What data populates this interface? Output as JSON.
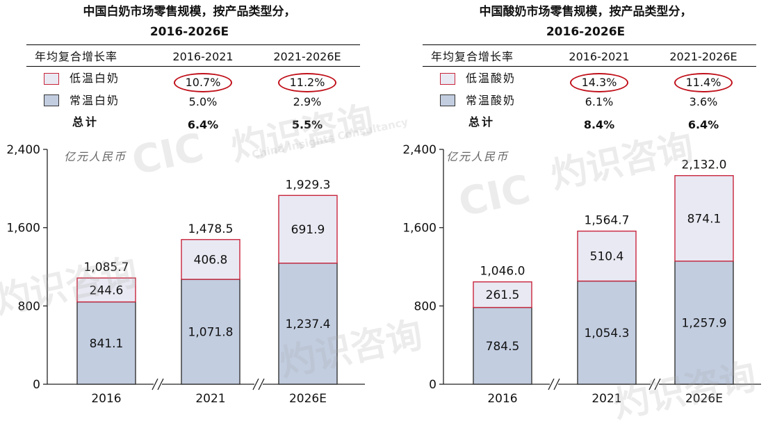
{
  "watermark": {
    "cn": "灼识咨询",
    "logo": "CIC",
    "en": "China Insights Consultancy"
  },
  "panels": [
    {
      "title_line1": "中国白奶市场零售规模，按产品类型分，",
      "title_line2": "2016-2026E",
      "table": {
        "header": [
          "年均复合增长率",
          "2016-2021",
          "2021-2026E"
        ],
        "rows": [
          {
            "label": "低温白奶",
            "v1": "10.7%",
            "v2": "11.2%",
            "swatch": "low",
            "circled": true,
            "bold": false
          },
          {
            "label": "常温白奶",
            "v1": "5.0%",
            "v2": "2.9%",
            "swatch": "ambient",
            "circled": false,
            "bold": false
          },
          {
            "label": "总计",
            "v1": "6.4%",
            "v2": "5.5%",
            "swatch": "",
            "circled": false,
            "bold": true
          }
        ]
      },
      "unit": "亿元人民币",
      "chart_data": {
        "type": "bar",
        "stacked": true,
        "categories": [
          "2016",
          "2021",
          "2026E"
        ],
        "series": [
          {
            "name": "常温白奶",
            "values": [
              841.1,
              1071.8,
              1237.4
            ],
            "labels": [
              "841.1",
              "1,071.8",
              "1,237.4"
            ],
            "color": "#c2cde0",
            "border": "#333333"
          },
          {
            "name": "低温白奶",
            "values": [
              244.6,
              406.8,
              691.9
            ],
            "labels": [
              "244.6",
              "406.8",
              "691.9"
            ],
            "color": "#e9e9f3",
            "border": "#c8243b"
          }
        ],
        "totals": [
          1085.7,
          1478.5,
          1929.3
        ],
        "total_labels": [
          "1,085.7",
          "1,478.5",
          "1,929.3"
        ],
        "y_ticks": [
          0,
          800,
          1600,
          2400
        ],
        "y_tick_labels": [
          "0",
          "800",
          "1,600",
          "2,400"
        ],
        "ylim": [
          0,
          2400
        ],
        "axis_breaks": true,
        "grid": false
      }
    },
    {
      "title_line1": "中国酸奶市场零售规模，按产品类型分，",
      "title_line2": "2016-2026E",
      "table": {
        "header": [
          "年均复合增长率",
          "2016-2021",
          "2021-2026E"
        ],
        "rows": [
          {
            "label": "低温酸奶",
            "v1": "14.3%",
            "v2": "11.4%",
            "swatch": "low",
            "circled": true,
            "bold": false
          },
          {
            "label": "常温酸奶",
            "v1": "6.1%",
            "v2": "3.6%",
            "swatch": "ambient",
            "circled": false,
            "bold": false
          },
          {
            "label": "总计",
            "v1": "8.4%",
            "v2": "6.4%",
            "swatch": "",
            "circled": false,
            "bold": true
          }
        ]
      },
      "unit": "亿元人民币",
      "chart_data": {
        "type": "bar",
        "stacked": true,
        "categories": [
          "2016",
          "2021",
          "2026E"
        ],
        "series": [
          {
            "name": "常温酸奶",
            "values": [
              784.5,
              1054.3,
              1257.9
            ],
            "labels": [
              "784.5",
              "1,054.3",
              "1,257.9"
            ],
            "color": "#c2cde0",
            "border": "#333333"
          },
          {
            "name": "低温酸奶",
            "values": [
              261.5,
              510.4,
              874.1
            ],
            "labels": [
              "261.5",
              "510.4",
              "874.1"
            ],
            "color": "#e9e9f3",
            "border": "#c8243b"
          }
        ],
        "totals": [
          1046.0,
          1564.7,
          2132.0
        ],
        "total_labels": [
          "1,046.0",
          "1,564.7",
          "2,132.0"
        ],
        "y_ticks": [
          0,
          800,
          1600,
          2400
        ],
        "y_tick_labels": [
          "0",
          "800",
          "1,600",
          "2,400"
        ],
        "ylim": [
          0,
          2400
        ],
        "axis_breaks": true,
        "grid": false
      }
    }
  ]
}
